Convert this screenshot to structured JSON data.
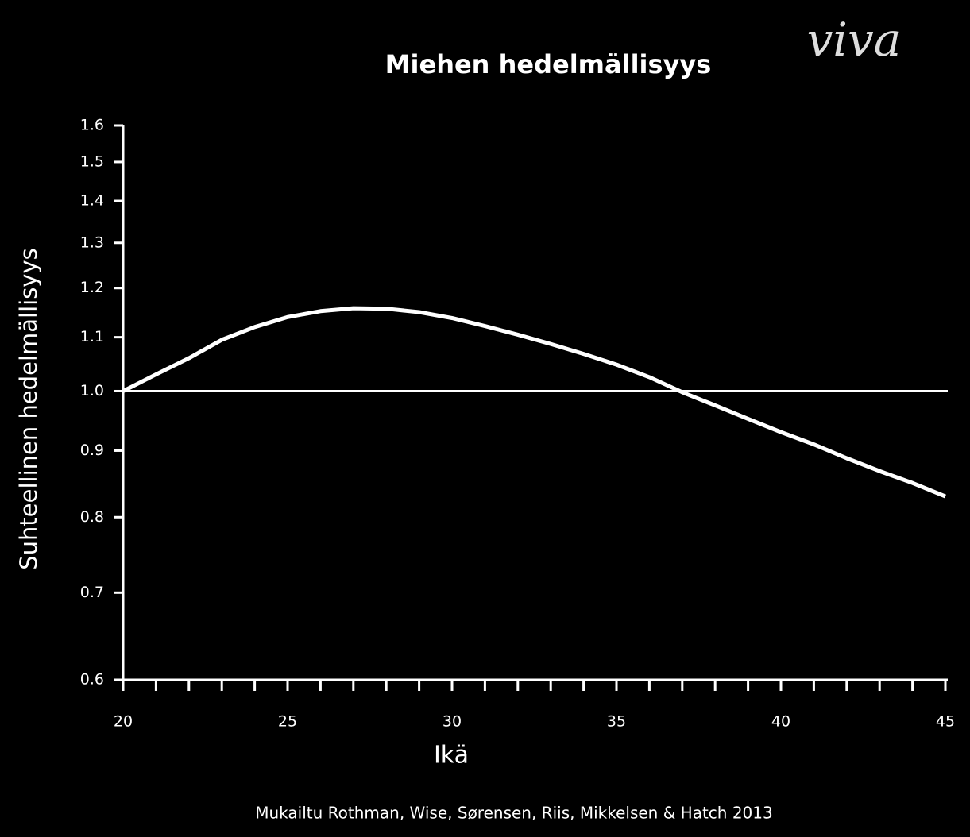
{
  "chart_data": {
    "type": "line",
    "title": "Miehen hedelmällisyys",
    "logo": "viva",
    "x_label": "Ikä",
    "y_label": "Suhteellinen hedelmällisyys",
    "source": "Mukailtu Rothman, Wise, Sørensen, Riis, Mikkelsen & Hatch 2013",
    "x": [
      20,
      21,
      22,
      23,
      24,
      25,
      26,
      27,
      28,
      29,
      30,
      31,
      32,
      33,
      34,
      35,
      36,
      37,
      38,
      39,
      40,
      41,
      42,
      43,
      44,
      45
    ],
    "series": [
      {
        "name": null,
        "color": "#ffffff",
        "values": [
          1.0,
          1.03,
          1.06,
          1.095,
          1.12,
          1.14,
          1.152,
          1.158,
          1.157,
          1.15,
          1.138,
          1.122,
          1.105,
          1.087,
          1.068,
          1.048,
          1.025,
          0.998,
          0.975,
          0.952,
          0.93,
          0.91,
          0.888,
          0.868,
          0.85,
          0.83
        ]
      }
    ],
    "xlim": [
      20,
      45
    ],
    "xticks": [
      20,
      25,
      30,
      35,
      40,
      45
    ],
    "ylim": [
      0.6,
      1.6
    ],
    "ylog": true,
    "yticks": [
      {
        "value": 0.6,
        "label": "0.6"
      },
      {
        "value": 0.7,
        "label": "0.7"
      },
      {
        "value": 0.8,
        "label": "0.8"
      },
      {
        "value": 0.9,
        "label": "0.9"
      },
      {
        "value": 1,
        "label": "1.0"
      },
      {
        "value": 1.1,
        "label": "1.1"
      },
      {
        "value": 1.2,
        "label": "1.2"
      },
      {
        "value": 1.3,
        "label": "1.3"
      },
      {
        "value": 1.4,
        "label": "1.4"
      },
      {
        "value": 1.5,
        "label": "1.5"
      },
      {
        "value": 1.6,
        "label": "1.6"
      }
    ],
    "reference_line": 1
  }
}
